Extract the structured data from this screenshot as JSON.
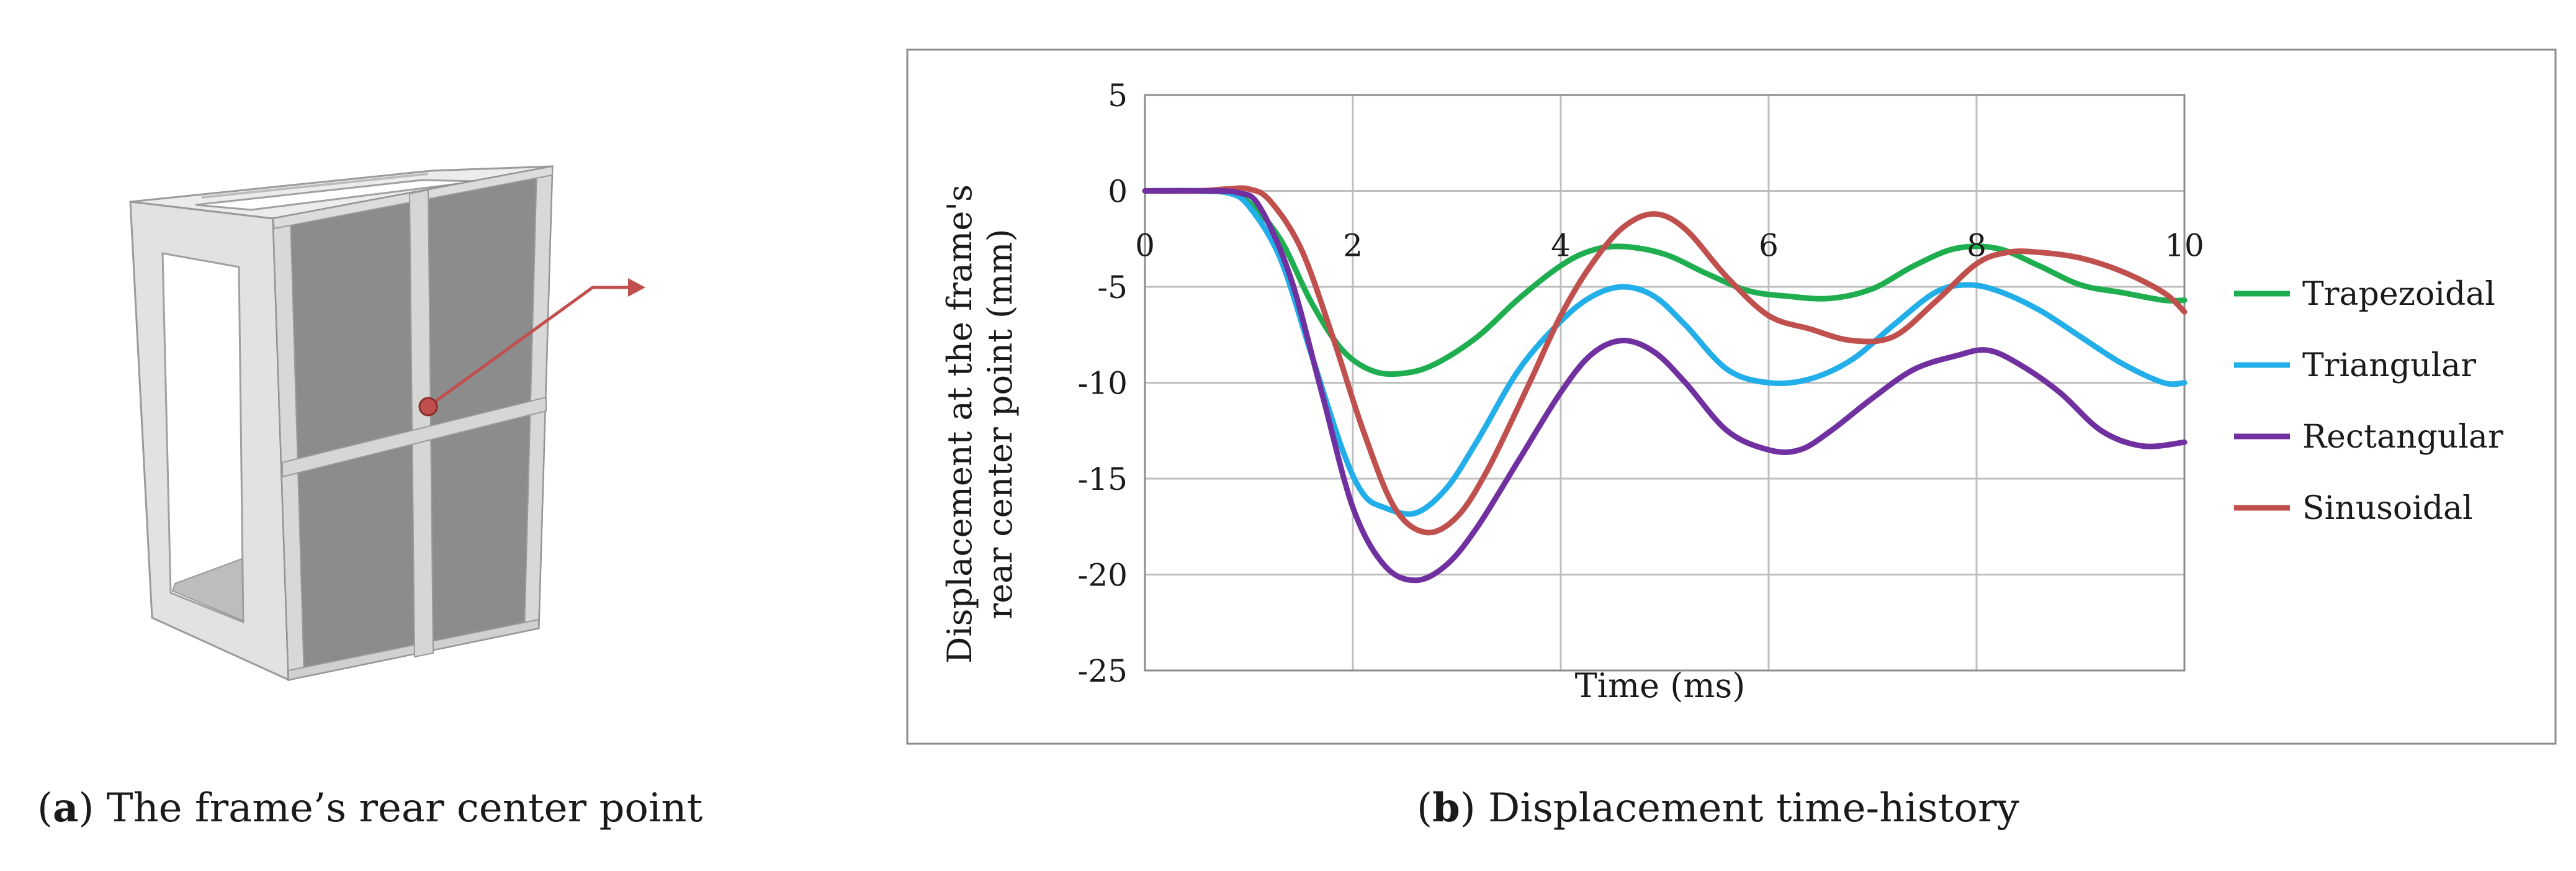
{
  "captions": {
    "a": {
      "letter": "a",
      "text": "The frame’s rear center point"
    },
    "b": {
      "letter": "b",
      "text": "Displacement time-history"
    }
  },
  "colors": {
    "trapezoidal": "#1fae4f",
    "triangular": "#22aee8",
    "rectangular": "#7030a0",
    "sinusoidal": "#c0504d",
    "frame_light": "#e6e6e6",
    "frame_mid": "#cfcfcf",
    "panel_dark": "#8a8a8a",
    "marker": "#c0504d"
  },
  "chart_data": {
    "type": "line",
    "title": "",
    "xlabel": "Time (ms)",
    "ylabel_line1": "Displacement at the frame's",
    "ylabel_line2": "rear center point (mm)",
    "xlim": [
      0,
      10
    ],
    "ylim": [
      -25,
      5
    ],
    "x_ticks": [
      0,
      2,
      4,
      6,
      8,
      10
    ],
    "y_ticks": [
      5,
      0,
      -5,
      -10,
      -15,
      -20,
      -25
    ],
    "grid": true,
    "legend_position": "right",
    "series": [
      {
        "name": "Trapezoidal",
        "color_key": "trapezoidal",
        "x": [
          0,
          0.5,
          0.8,
          1.0,
          1.3,
          1.6,
          1.9,
          2.2,
          2.5,
          2.8,
          3.2,
          3.6,
          4.0,
          4.3,
          4.6,
          5.0,
          5.4,
          5.8,
          6.2,
          6.6,
          7.0,
          7.4,
          7.8,
          8.2,
          8.6,
          9.0,
          9.4,
          9.8,
          10.0
        ],
        "y": [
          0,
          0,
          -0.1,
          -0.6,
          -2.5,
          -5.8,
          -8.3,
          -9.4,
          -9.5,
          -9.0,
          -7.6,
          -5.6,
          -3.9,
          -3.1,
          -2.9,
          -3.3,
          -4.3,
          -5.2,
          -5.5,
          -5.6,
          -5.1,
          -3.9,
          -3.0,
          -3.0,
          -3.9,
          -4.9,
          -5.3,
          -5.7,
          -5.7
        ]
      },
      {
        "name": "Triangular",
        "color_key": "triangular",
        "x": [
          0,
          0.5,
          0.8,
          1.0,
          1.3,
          1.6,
          1.9,
          2.1,
          2.3,
          2.6,
          2.9,
          3.2,
          3.6,
          4.0,
          4.3,
          4.6,
          4.9,
          5.2,
          5.6,
          6.0,
          6.4,
          6.8,
          7.2,
          7.6,
          7.9,
          8.2,
          8.6,
          9.0,
          9.4,
          9.8,
          10.0
        ],
        "y": [
          0,
          0,
          -0.1,
          -0.8,
          -3.5,
          -8.5,
          -13.5,
          -15.8,
          -16.5,
          -16.8,
          -15.5,
          -13.0,
          -9.3,
          -6.8,
          -5.5,
          -5.0,
          -5.5,
          -7.0,
          -9.3,
          -10.0,
          -9.8,
          -8.8,
          -7.0,
          -5.3,
          -4.9,
          -5.2,
          -6.2,
          -7.6,
          -9.0,
          -10.0,
          -10.0
        ]
      },
      {
        "name": "Rectangular",
        "color_key": "rectangular",
        "x": [
          0,
          0.6,
          0.9,
          1.1,
          1.4,
          1.7,
          2.0,
          2.3,
          2.6,
          2.9,
          3.2,
          3.6,
          4.0,
          4.3,
          4.6,
          4.9,
          5.2,
          5.6,
          6.0,
          6.3,
          6.6,
          7.0,
          7.4,
          7.8,
          8.1,
          8.4,
          8.8,
          9.2,
          9.6,
          10.0
        ],
        "y": [
          0,
          0,
          -0.1,
          -0.8,
          -4.5,
          -10.5,
          -16.5,
          -19.5,
          -20.3,
          -19.5,
          -17.5,
          -14.0,
          -10.5,
          -8.5,
          -7.8,
          -8.4,
          -10.0,
          -12.5,
          -13.5,
          -13.5,
          -12.5,
          -10.8,
          -9.3,
          -8.6,
          -8.3,
          -9.0,
          -10.5,
          -12.5,
          -13.3,
          -13.1
        ]
      },
      {
        "name": "Sinusoidal",
        "color_key": "sinusoidal",
        "x": [
          0,
          0.5,
          0.8,
          1.0,
          1.2,
          1.5,
          1.8,
          2.1,
          2.4,
          2.7,
          3.0,
          3.3,
          3.7,
          4.0,
          4.3,
          4.6,
          4.9,
          5.2,
          5.6,
          6.0,
          6.4,
          6.8,
          7.2,
          7.6,
          8.0,
          8.3,
          8.6,
          9.0,
          9.4,
          9.8,
          10.0
        ],
        "y": [
          0,
          0,
          0.1,
          0.1,
          -0.5,
          -3.0,
          -7.5,
          -12.5,
          -16.5,
          -17.8,
          -17.0,
          -14.5,
          -10.0,
          -6.5,
          -3.8,
          -1.9,
          -1.2,
          -2.0,
          -4.5,
          -6.5,
          -7.2,
          -7.8,
          -7.6,
          -5.8,
          -3.8,
          -3.2,
          -3.2,
          -3.5,
          -4.2,
          -5.3,
          -6.3
        ]
      }
    ]
  }
}
